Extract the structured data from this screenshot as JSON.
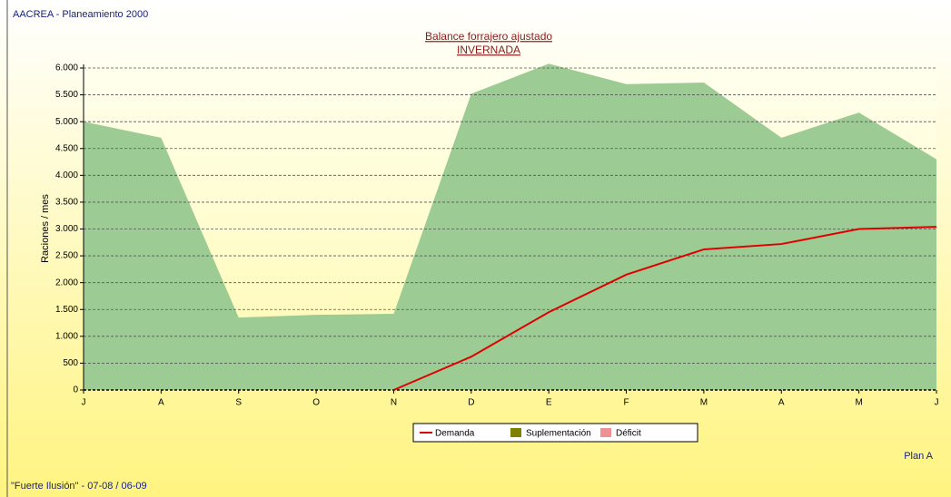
{
  "header": "AACREA - Planeamiento 2000",
  "chart_data": {
    "type": "area",
    "title": "Balance forrajero ajustado",
    "subtitle": "INVERNADA",
    "ylabel": "Raciones / mes",
    "categories": [
      "J",
      "A",
      "S",
      "O",
      "N",
      "D",
      "E",
      "F",
      "M",
      "A",
      "M",
      "J"
    ],
    "area": {
      "color": "#9ccc94",
      "values": [
        5000,
        4700,
        1350,
        1400,
        1420,
        5520,
        6080,
        5700,
        5730,
        4700,
        5170,
        4300
      ]
    },
    "series": [
      {
        "name": "Demanda",
        "color": "#e00000",
        "values": [
          null,
          null,
          null,
          null,
          0,
          620,
          1450,
          2150,
          2620,
          2720,
          3000,
          3040
        ]
      },
      {
        "name": "Suplementación",
        "color": "#808000"
      },
      {
        "name": "Déficit",
        "color": "#f09090"
      }
    ],
    "ylim": [
      0,
      6000
    ],
    "yticks": [
      0,
      500,
      {
        "value": 1000,
        "label": "1.000"
      },
      {
        "value": 1500,
        "label": "1.500"
      },
      {
        "value": 2000,
        "label": "2.000"
      },
      {
        "value": 2500,
        "label": "2.500"
      },
      {
        "value": 3000,
        "label": "3.000"
      },
      {
        "value": 3500,
        "label": "3.500"
      },
      {
        "value": 4000,
        "label": "4.000"
      },
      {
        "value": 4500,
        "label": "4.500"
      },
      {
        "value": 5000,
        "label": "5.000"
      },
      {
        "value": 5500,
        "label": "5.500"
      },
      {
        "value": 6000,
        "label": "6.000"
      }
    ],
    "grid": true,
    "legend": "bottom"
  },
  "plan": "Plan A",
  "footer": "\"Fuerte Ilusión\" - 07-08 / 06-09"
}
